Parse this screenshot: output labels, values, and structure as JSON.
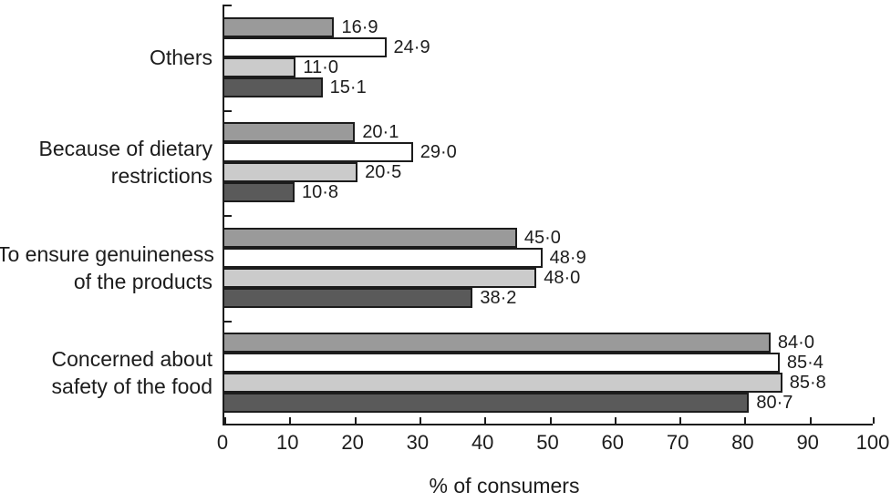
{
  "figure": {
    "background": "#ffffff",
    "axis_color": "#1c1c1c",
    "text_color": "#1c1c1c"
  },
  "chart_data": {
    "type": "bar",
    "orientation": "horizontal",
    "title": "",
    "xlabel": "% of consumers",
    "ylabel": "",
    "xlim": [
      0,
      100
    ],
    "xticks": [
      0,
      10,
      20,
      30,
      40,
      50,
      60,
      70,
      80,
      90,
      100
    ],
    "grid": false,
    "legend_position": "none",
    "decimal_separator": "middle-dot",
    "categories": [
      "Others",
      "Because of dietary restrictions",
      "To ensure genuineness of the products",
      "Concerned about safety of the food"
    ],
    "category_label_lines": [
      [
        "Others"
      ],
      [
        "Because of dietary",
        "restrictions"
      ],
      [
        "To ensure genuineness",
        "of the products"
      ],
      [
        "Concerned about",
        "safety of the food"
      ]
    ],
    "series": [
      {
        "name": "series-1-medium-gray",
        "fill": "#9a9a9a",
        "values": [
          16.9,
          20.1,
          45.0,
          84.0
        ],
        "labels": [
          "16·9",
          "20·1",
          "45·0",
          "84·0"
        ]
      },
      {
        "name": "series-2-white",
        "fill": "#ffffff",
        "values": [
          24.9,
          29.0,
          48.9,
          85.4
        ],
        "labels": [
          "24·9",
          "29·0",
          "48·9",
          "85·4"
        ]
      },
      {
        "name": "series-3-light-gray",
        "fill": "#cbcbcb",
        "values": [
          11.0,
          20.5,
          48.0,
          85.8
        ],
        "labels": [
          "11·0",
          "20·5",
          "48·0",
          "85·8"
        ]
      },
      {
        "name": "series-4-dark-gray",
        "fill": "#5a5a5a",
        "values": [
          15.1,
          10.8,
          38.2,
          80.7
        ],
        "labels": [
          "15·1",
          "10·8",
          "38·2",
          "80·7"
        ]
      }
    ]
  }
}
